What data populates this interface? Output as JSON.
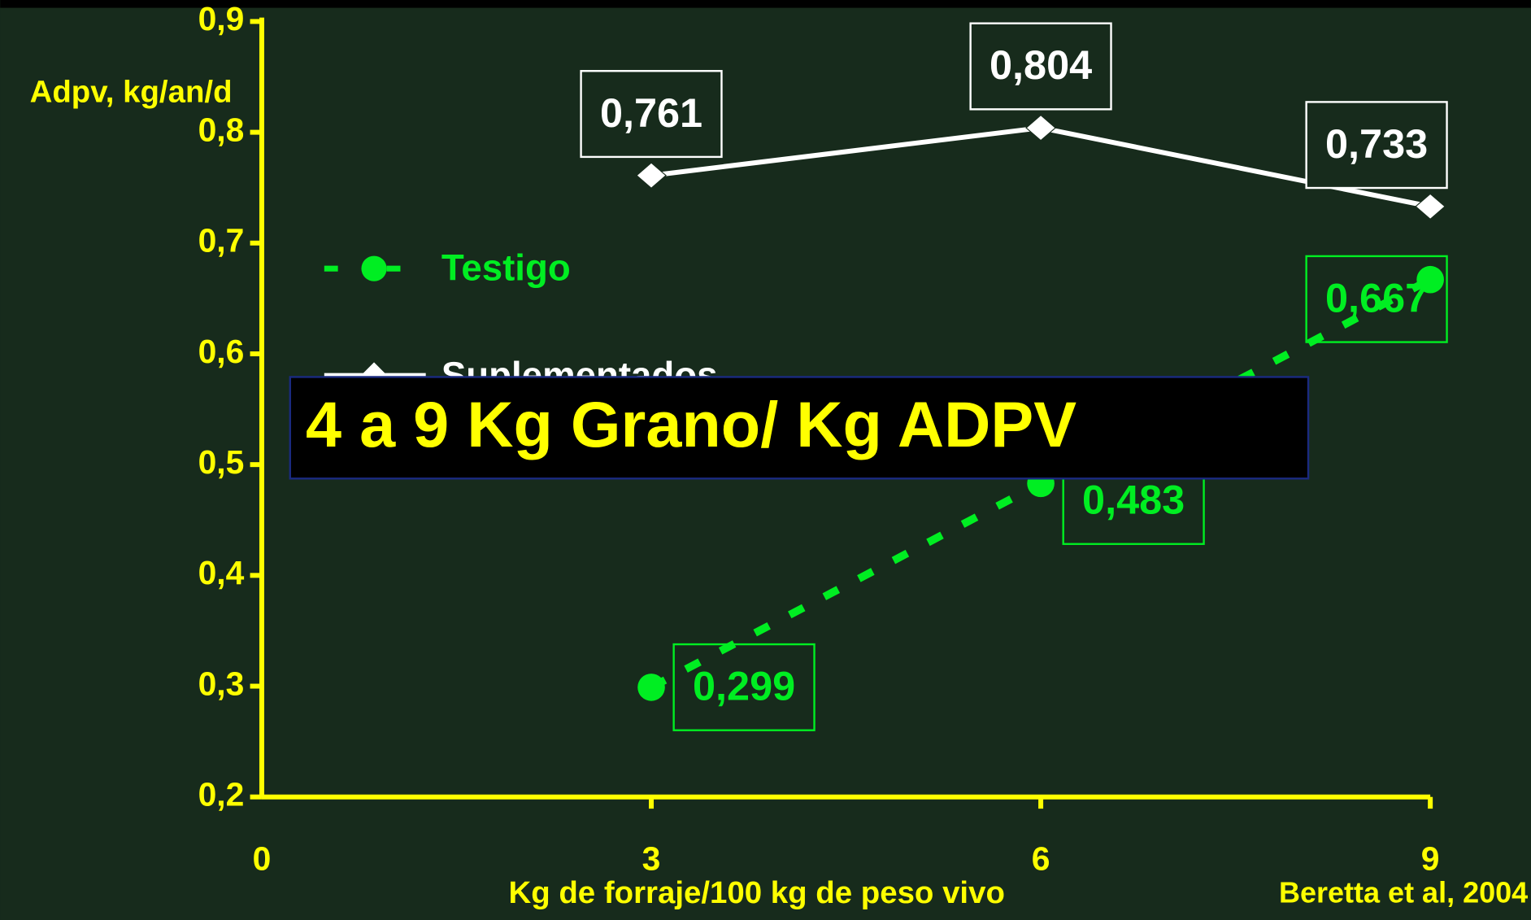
{
  "chart_data": {
    "type": "line",
    "y_label": "Adpv, kg/an/d",
    "x_label": "Kg de forraje/100 kg de peso vivo",
    "source": "Beretta et al, 2004",
    "annotation": "4 a 9 Kg Grano/ Kg ADPV",
    "x": [
      3,
      6,
      9
    ],
    "xlim": [
      0,
      9
    ],
    "xticks": [
      0,
      3,
      6,
      9
    ],
    "ylim": [
      0.2,
      0.9
    ],
    "yticks": [
      {
        "value": 0.2,
        "label": "0,2"
      },
      {
        "value": 0.3,
        "label": "0,3"
      },
      {
        "value": 0.4,
        "label": "0,4"
      },
      {
        "value": 0.5,
        "label": "0,5"
      },
      {
        "value": 0.6,
        "label": "0,6"
      },
      {
        "value": 0.7,
        "label": "0,7"
      },
      {
        "value": 0.8,
        "label": "0,8"
      },
      {
        "value": 0.9,
        "label": "0,9"
      }
    ],
    "series": [
      {
        "name": "Testigo",
        "color": "#00ee22",
        "marker": "circle",
        "dashed": true,
        "values": [
          0.299,
          0.483,
          0.667
        ],
        "value_labels": [
          "0,299",
          "0,483",
          "0,667"
        ]
      },
      {
        "name": "Suplementados",
        "color": "#ffffff",
        "marker": "diamond",
        "dashed": false,
        "values": [
          0.761,
          0.804,
          0.733
        ],
        "value_labels": [
          "0,761",
          "0,804",
          "0,733"
        ]
      }
    ]
  }
}
